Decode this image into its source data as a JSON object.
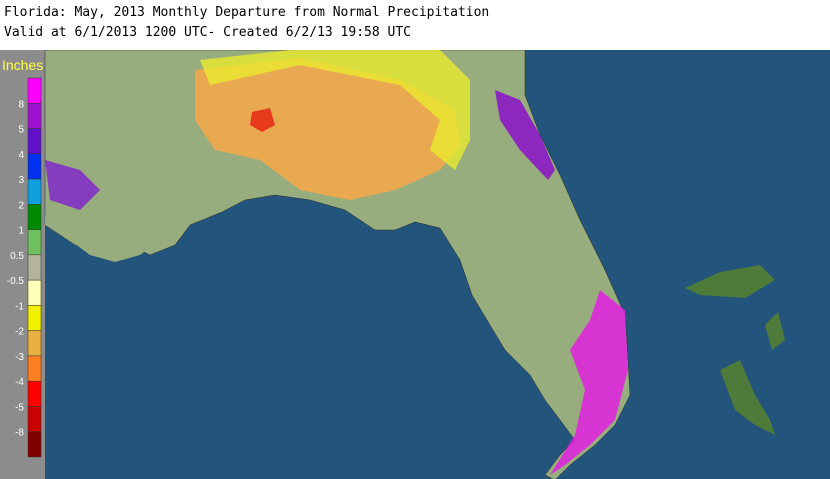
{
  "header": {
    "title": "Florida: May, 2013 Monthly Departure from Normal Precipitation",
    "subtitle": "Valid at 6/1/2013 1200 UTC- Created 6/2/13 19:58 UTC"
  },
  "legend": {
    "title": "Inches",
    "colors": [
      "#ff00ff",
      "#a010d0",
      "#6010c8",
      "#0030f0",
      "#10a0e0",
      "#008a00",
      "#70c060",
      "#b4b49c",
      "#ffffb8",
      "#f0f000",
      "#e8b040",
      "#ff8020",
      "#ff0000",
      "#c80000",
      "#800000"
    ],
    "labels": [
      "8",
      "5",
      "4",
      "3",
      "2",
      "1",
      "0.5",
      "-0.5",
      "-1",
      "-2",
      "-3",
      "-4",
      "-5",
      "-8"
    ]
  }
}
